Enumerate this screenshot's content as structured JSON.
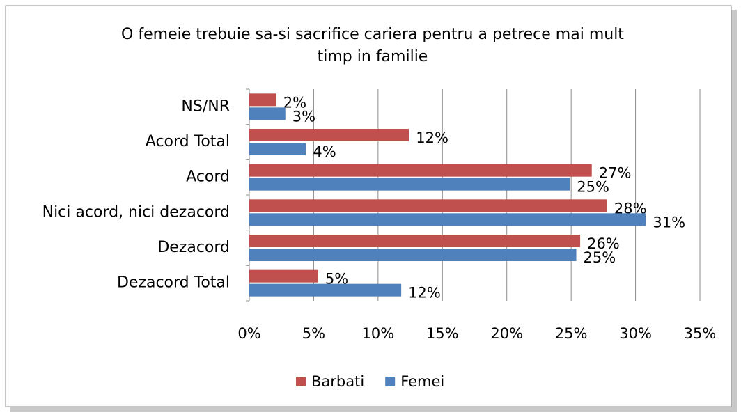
{
  "chart_data": {
    "type": "hbar",
    "title": [
      "O femeie trebuie sa-si sacrifice cariera pentru a petrece mai mult",
      "timp in familie"
    ],
    "categories": [
      "NS/NR",
      "Acord Total",
      "Acord",
      "Nici acord, nici dezacord",
      "Dezacord",
      "Dezacord Total"
    ],
    "series": [
      {
        "name": "Barbati",
        "color": "#c0504d",
        "values": [
          2.1,
          12.4,
          26.6,
          27.8,
          25.7,
          5.35
        ],
        "value_labels": [
          "2%",
          "12%",
          "27%",
          "28%",
          "26%",
          "5%"
        ]
      },
      {
        "name": "Femei",
        "color": "#4f81bd",
        "values": [
          2.8,
          4.4,
          24.9,
          30.8,
          25.4,
          11.8
        ],
        "value_labels": [
          "3%",
          "4%",
          "25%",
          "31%",
          "25%",
          "12%"
        ]
      }
    ],
    "xlim": [
      0,
      35
    ],
    "xticks": [
      {
        "value": 0,
        "label": "0%"
      },
      {
        "value": 5,
        "label": "5%"
      },
      {
        "value": 10,
        "label": "10%"
      },
      {
        "value": 15,
        "label": "15%"
      },
      {
        "value": 20,
        "label": "20%"
      },
      {
        "value": 25,
        "label": "25%"
      },
      {
        "value": 30,
        "label": "30%"
      },
      {
        "value": 35,
        "label": "35%"
      }
    ],
    "grid": true,
    "legend": "bottom"
  }
}
